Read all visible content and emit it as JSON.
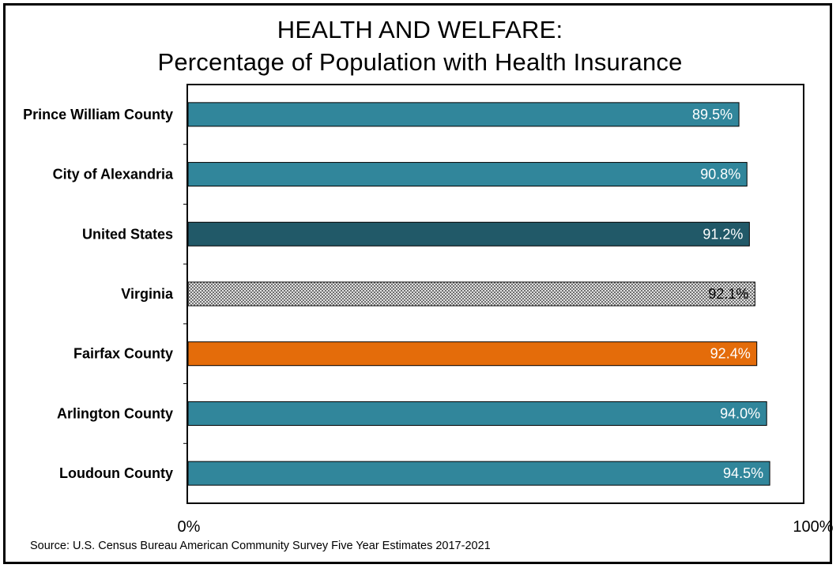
{
  "chart_data": {
    "type": "bar",
    "orientation": "horizontal",
    "title": "HEALTH AND WELFARE:",
    "subtitle": "Percentage of Population with Health Insurance",
    "categories": [
      "Prince William County",
      "City of Alexandria",
      "United States",
      "Virginia",
      "Fairfax County",
      "Arlington County",
      "Loudoun County"
    ],
    "values": [
      89.5,
      90.8,
      91.2,
      92.1,
      92.4,
      94.0,
      94.5
    ],
    "data_labels": [
      "89.5%",
      "90.8%",
      "91.2%",
      "92.1%",
      "92.4%",
      "94.0%",
      "94.5%"
    ],
    "bar_styles": [
      "teal",
      "teal",
      "dark-teal",
      "hatched",
      "orange",
      "teal",
      "teal"
    ],
    "colors": {
      "teal": "#31869B",
      "dark-teal": "#215968",
      "orange": "#E46C0A",
      "hatched": "#ffffff",
      "label_light": "#ffffff",
      "label_dark": "#000000"
    },
    "xlim": [
      0,
      100
    ],
    "x_ticks": [
      "0%",
      "100%"
    ],
    "xlabel": "",
    "ylabel": "",
    "grid": false,
    "legend": "none"
  },
  "source": "Source:  U.S. Census Bureau American Community Survey Five Year Estimates 2017-2021"
}
